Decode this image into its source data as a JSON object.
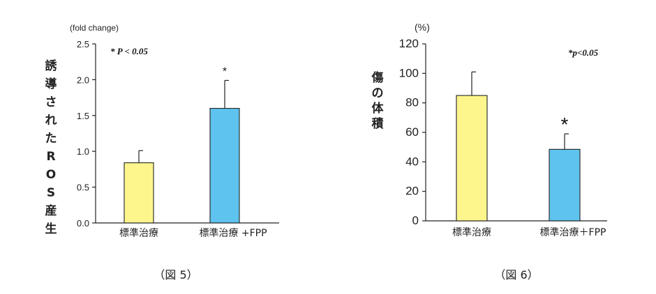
{
  "colors": {
    "yellow": "#FDF68D",
    "blue": "#5EC3EE",
    "stroke": "#222222"
  },
  "chart_data": [
    {
      "type": "bar",
      "ylabel": "誘導されたROS産生",
      "unit": "(fold change)",
      "ylim": [
        0,
        2.5
      ],
      "yticks": [
        "0.0",
        "0.5",
        "1.0",
        "1.5",
        "2.0",
        "2.5"
      ],
      "categories": [
        "標準治療",
        "標準治療 +FPP"
      ],
      "values": [
        0.84,
        1.6
      ],
      "errors": [
        0.17,
        0.39
      ],
      "significance": [
        "",
        "*"
      ],
      "annotation": "* P < 0.05",
      "caption": "（図 5）"
    },
    {
      "type": "bar",
      "ylabel": "傷の体積",
      "unit": "(%)",
      "ylim": [
        0,
        120
      ],
      "yticks": [
        "0",
        "20",
        "40",
        "60",
        "80",
        "100",
        "120"
      ],
      "categories": [
        "標準治療",
        "標準治療＋FPP"
      ],
      "values": [
        85,
        48.5
      ],
      "errors": [
        16,
        10.5
      ],
      "significance": [
        "",
        "*"
      ],
      "annotation": "*p<0.05",
      "caption": "（図 6）"
    }
  ]
}
